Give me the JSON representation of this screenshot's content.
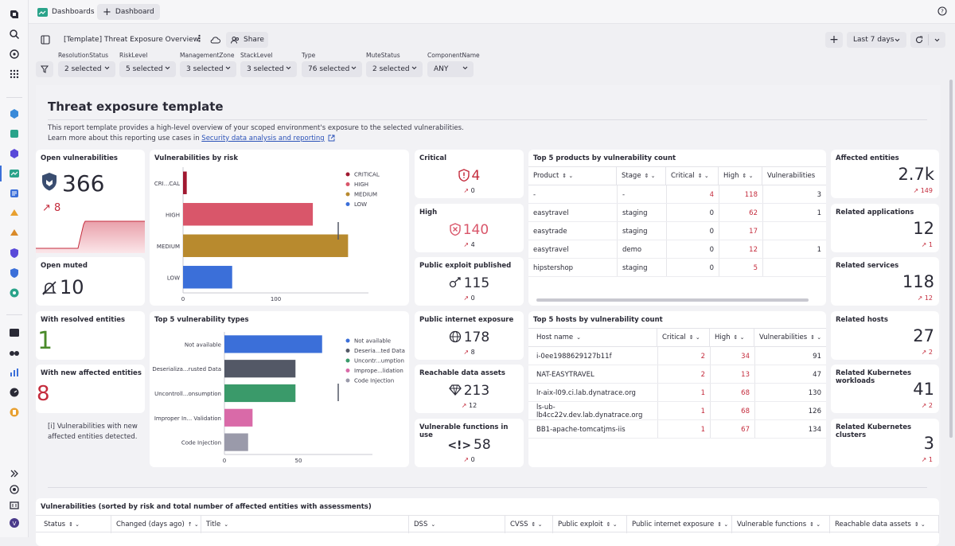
{
  "topbar": {
    "dashboards_tab": "Dashboards",
    "new_tab": "Dashboard"
  },
  "header": {
    "title": "[Template] Threat Exposure Overview",
    "share": "Share",
    "timeframe": "Last 7 days"
  },
  "filters": [
    {
      "label": "ResolutionStatus",
      "value": "2 selected"
    },
    {
      "label": "RiskLevel",
      "value": "5 selected"
    },
    {
      "label": "ManagementZone",
      "value": "3 selected"
    },
    {
      "label": "StackLevel",
      "value": "3 selected"
    },
    {
      "label": "Type",
      "value": "76 selected"
    },
    {
      "label": "MuteStatus",
      "value": "2 selected"
    },
    {
      "label": "ComponentName",
      "value": "ANY"
    }
  ],
  "intro": {
    "heading": "Threat exposure template",
    "line1": "This report template provides a high-level overview of your scoped environment's exposure to the selected vulnerabilities.",
    "line2_prefix": "Learn more about this reporting use cases in",
    "link": "Security data analysis and reporting"
  },
  "open_vulns": {
    "title": "Open vulnerabilities",
    "value": "366",
    "delta": "8"
  },
  "open_muted": {
    "title": "Open muted",
    "value": "10"
  },
  "resolved": {
    "title": "With resolved entities",
    "value": "1"
  },
  "new_affected": {
    "title": "With new affected entities",
    "value": "8"
  },
  "note": {
    "text1": "[i] Vulnerabilities with new",
    "text2": "affected entities detected."
  },
  "chart_data": [
    {
      "type": "bar",
      "title": "Vulnerabilities by risk",
      "orientation": "horizontal",
      "categories": [
        "CRI...CAL",
        "HIGH",
        "MEDIUM",
        "LOW"
      ],
      "values": [
        4,
        140,
        178,
        53
      ],
      "colors": [
        "#a01830",
        "#d9566a",
        "#b88a2e",
        "#3b6fd9"
      ],
      "legend": [
        "CRITICAL",
        "HIGH",
        "MEDIUM",
        "LOW"
      ],
      "xticks": [
        "0",
        "100"
      ],
      "xlim": [
        0,
        200
      ]
    },
    {
      "type": "bar",
      "title": "Top 5 vulnerability types",
      "orientation": "horizontal",
      "categories": [
        "Not available",
        "Deserializa...rusted Data",
        "Uncontroll...onsumption",
        "Improper In... Validation",
        "Code Injection"
      ],
      "values": [
        66,
        48,
        48,
        19,
        16
      ],
      "colors": [
        "#3b6fd9",
        "#535866",
        "#3a9a6a",
        "#d96aa8",
        "#9a9aaa"
      ],
      "legend": [
        "Not available",
        "Deseria...ted Data",
        "Uncontr...umption",
        "Imprope...lidation",
        "Code Injection"
      ],
      "xticks": [
        "0",
        "50"
      ],
      "xlim": [
        0,
        100
      ]
    }
  ],
  "critical": {
    "title": "Critical",
    "value": "4",
    "delta": "0"
  },
  "high": {
    "title": "High",
    "value": "140",
    "delta": "4"
  },
  "public_exploit": {
    "title": "Public exploit published",
    "value": "115",
    "delta": "0"
  },
  "public_internet": {
    "title": "Public internet exposure",
    "value": "178",
    "delta": "8"
  },
  "reachable": {
    "title": "Reachable data assets",
    "value": "213",
    "delta": "12"
  },
  "vuln_functions": {
    "title": "Vulnerable functions in use",
    "value": "58",
    "delta": "0"
  },
  "products": {
    "title": "Top 5 products by vulnerability count",
    "columns": [
      "Product",
      "Stage",
      "Critical",
      "High",
      "Vulnerabilities"
    ],
    "rows": [
      [
        "-",
        "-",
        "4",
        "118",
        "3"
      ],
      [
        "easytravel",
        "staging",
        "0",
        "62",
        "1"
      ],
      [
        "easytrade",
        "staging",
        "0",
        "17",
        ""
      ],
      [
        "easytravel",
        "demo",
        "0",
        "12",
        "1"
      ],
      [
        "hipstershop",
        "staging",
        "0",
        "5",
        ""
      ]
    ]
  },
  "hosts": {
    "title": "Top 5 hosts by vulnerability count",
    "columns": [
      "Host name",
      "Critical",
      "High",
      "Vulnerabilities"
    ],
    "rows": [
      [
        "i-0ee1988629127b11f",
        "2",
        "34",
        "91"
      ],
      [
        "NAT-EASYTRAVEL",
        "2",
        "13",
        "47"
      ],
      [
        "lr-aix-l09.ci.lab.dynatrace.org",
        "1",
        "68",
        "130"
      ],
      [
        "ls-ub-lb4cc22v.dev.lab.dynatrace.org",
        "1",
        "68",
        "126"
      ],
      [
        "BB1-apache-tomcatjms-iis",
        "1",
        "67",
        "134"
      ]
    ]
  },
  "related": [
    {
      "title": "Affected entities",
      "value": "2.7k",
      "delta": "149"
    },
    {
      "title": "Related applications",
      "value": "12",
      "delta": "1"
    },
    {
      "title": "Related services",
      "value": "118",
      "delta": "12"
    },
    {
      "title": "Related hosts",
      "value": "27",
      "delta": "2"
    },
    {
      "title": "Related Kubernetes workloads",
      "value": "41",
      "delta": "2"
    },
    {
      "title": "Related Kubernetes clusters",
      "value": "3",
      "delta": "1"
    }
  ],
  "bottom": {
    "title": "Vulnerabilities (sorted by risk and total number of affected entities with assessments)",
    "columns": [
      "Status",
      "Changed (days ago)",
      "Title",
      "DSS",
      "CVSS",
      "Public exploit",
      "Public internet exposure",
      "Vulnerable functions",
      "Reachable data assets"
    ]
  }
}
